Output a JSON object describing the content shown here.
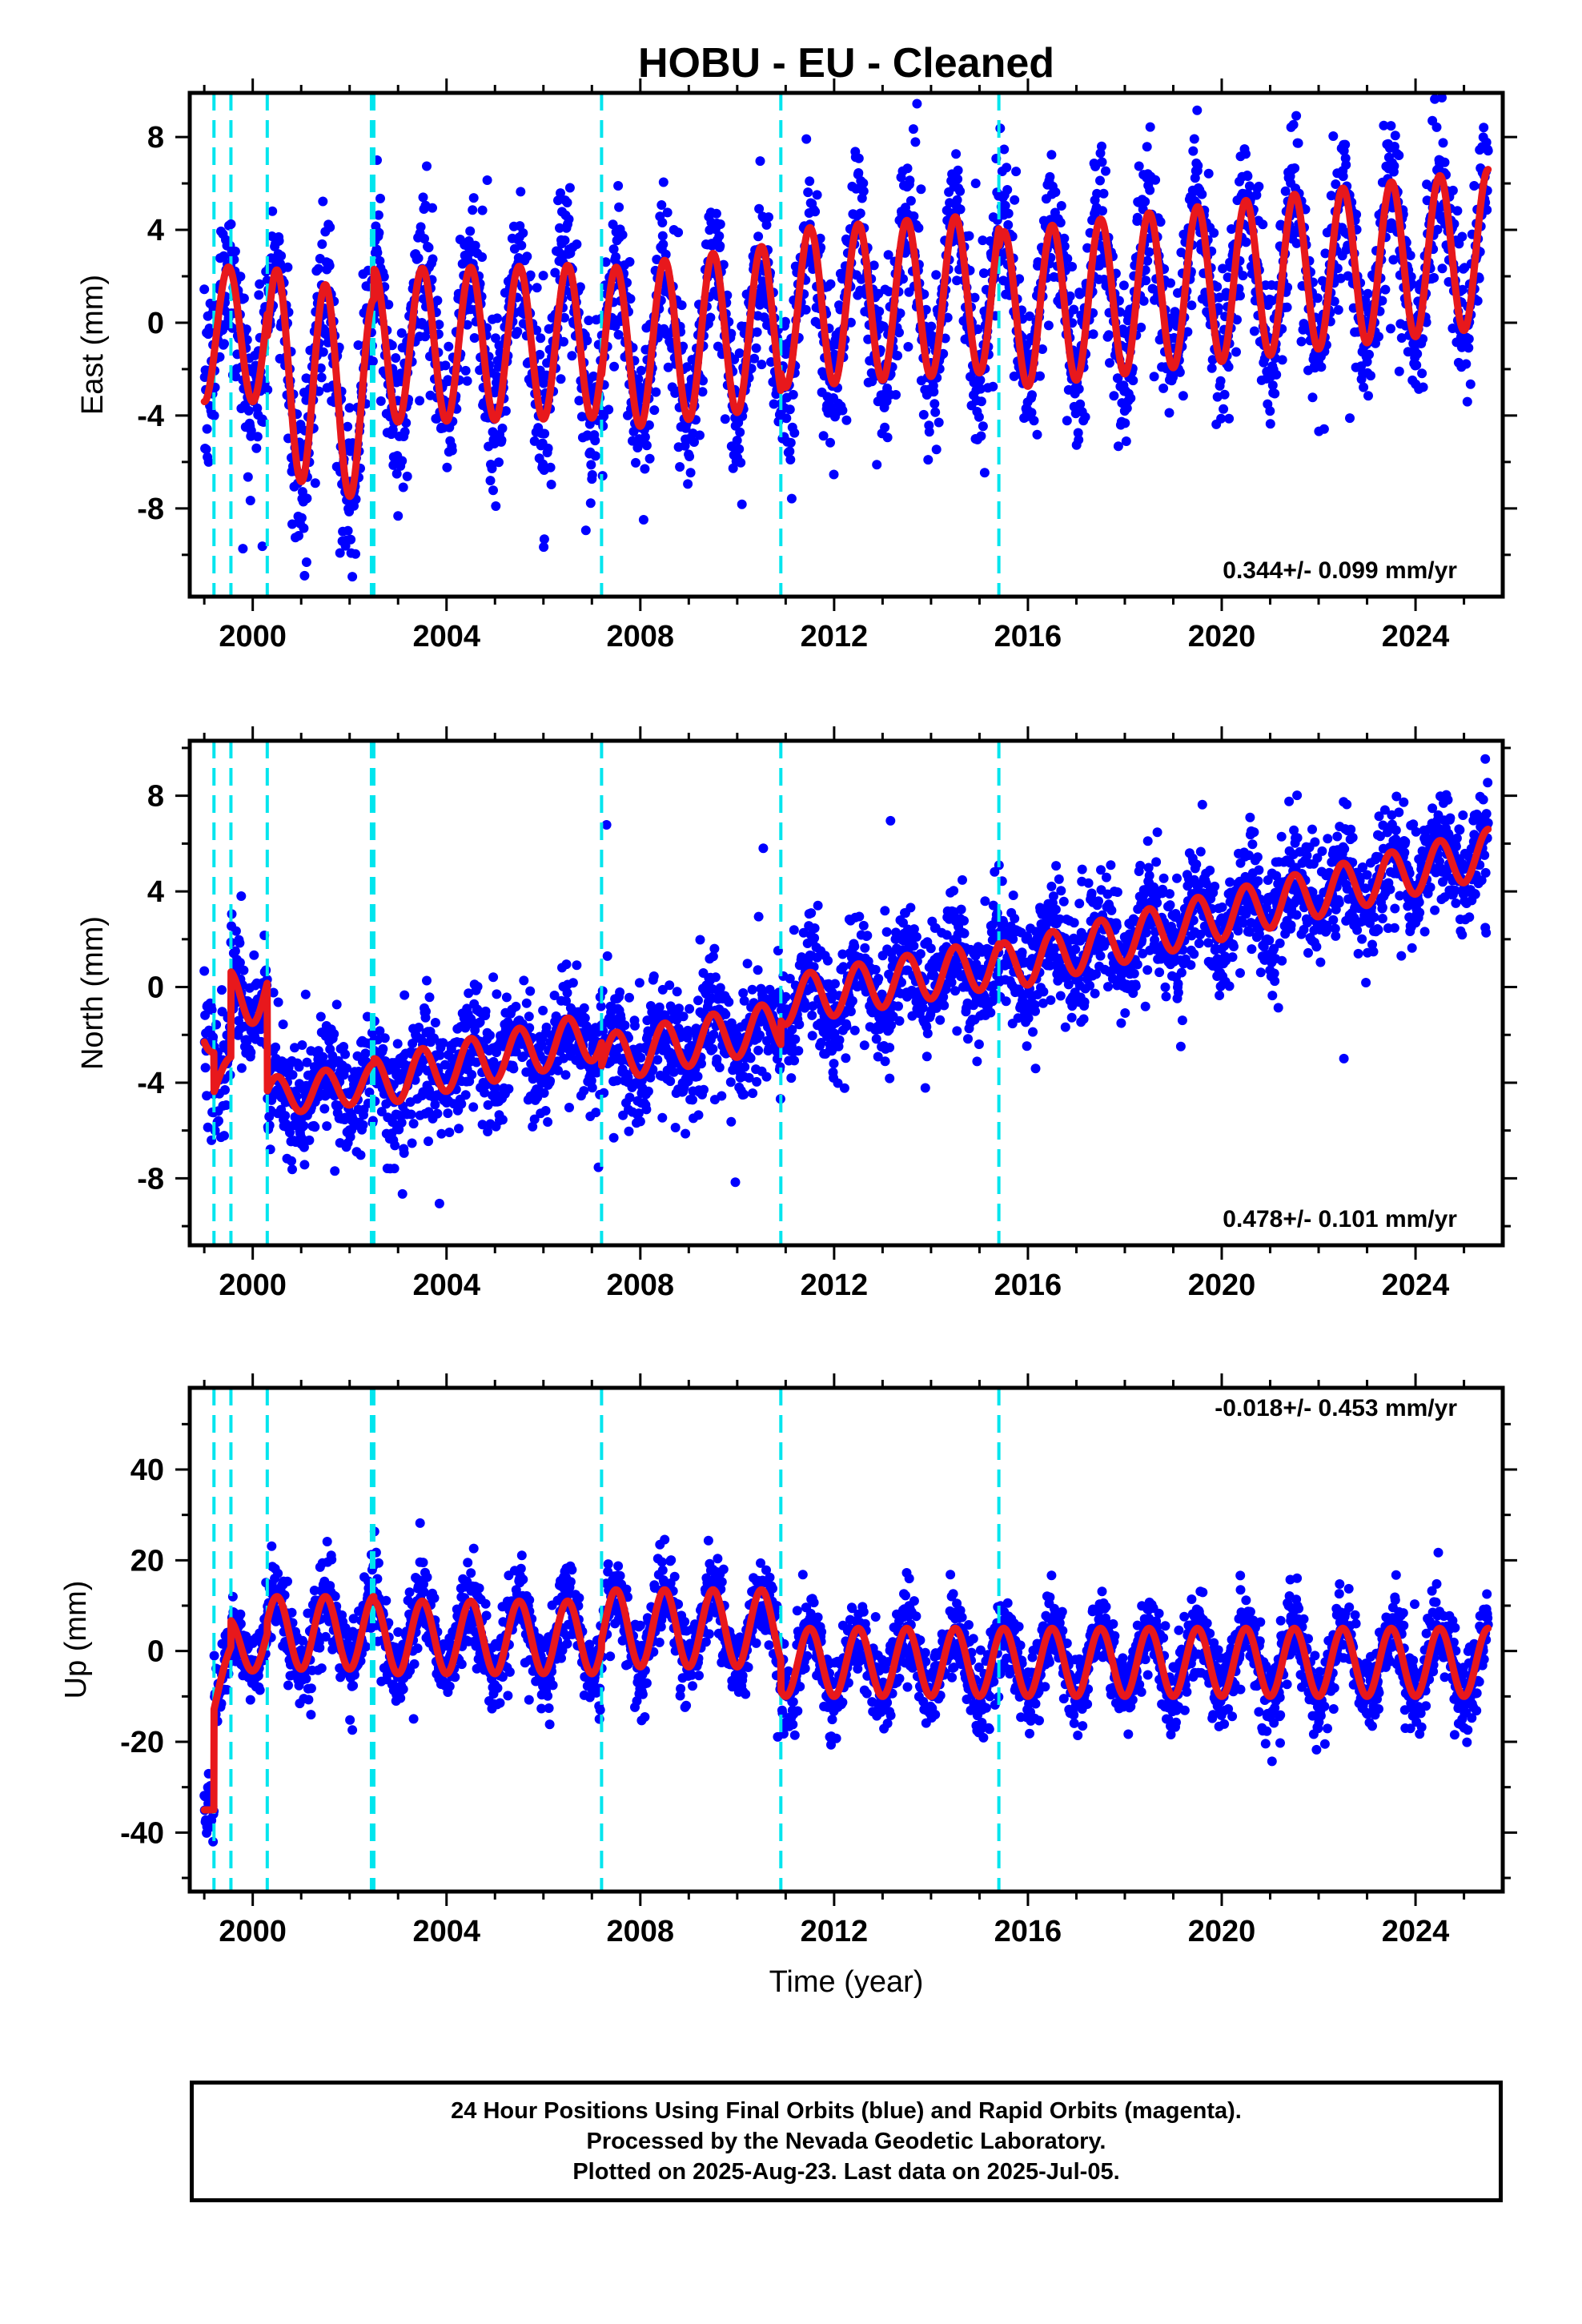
{
  "title": "HOBU  - EU - Cleaned",
  "xlabel": "Time (year)",
  "caption": [
    "24 Hour Positions Using Final Orbits (blue) and Rapid Orbits (magenta).",
    "Processed by the Nevada Geodetic Laboratory.",
    "Plotted on 2025-Aug-23. Last data on 2025-Jul-05."
  ],
  "colors": {
    "final_orbits": "#0000ff",
    "model_fit": "#e8181c",
    "equipment_change": "#00e5ee",
    "frame": "#000000"
  },
  "chart_data": [
    {
      "type": "scatter",
      "ylabel": "East (mm)",
      "xlim": [
        1998.7,
        2025.8
      ],
      "ylim": [
        -11.8,
        9.9
      ],
      "xticks": [
        2000,
        2004,
        2008,
        2012,
        2016,
        2020,
        2024
      ],
      "yticks": [
        -8,
        -4,
        0,
        4,
        8
      ],
      "rate_label": "0.344+/- 0.099 mm/yr",
      "offsets": [
        1999.2,
        1999.55,
        2000.3,
        2002.45,
        2002.5,
        2007.2,
        2010.9,
        2015.4
      ],
      "fit_segments": [
        {
          "start": 1999.0,
          "end": 2000.3,
          "trend": [
            -0.5,
            -0.5
          ],
          "amp": 2.9
        },
        {
          "start": 2000.3,
          "end": 2002.5,
          "trend": [
            -2.0,
            -3.4
          ],
          "amp": 4.4
        },
        {
          "start": 2002.5,
          "end": 2007.2,
          "trend": [
            -1.0,
            -0.8
          ],
          "amp": 3.3
        },
        {
          "start": 2007.2,
          "end": 2010.9,
          "trend": [
            -1.2,
            -0.1
          ],
          "amp": 3.5
        },
        {
          "start": 2010.9,
          "end": 2015.4,
          "trend": [
            0.6,
            1.3
          ],
          "amp": 3.4
        },
        {
          "start": 2015.4,
          "end": 2025.5,
          "trend": [
            0.5,
            3.2
          ],
          "amp": 3.4
        }
      ],
      "noise_sd": 1.7
    },
    {
      "type": "scatter",
      "ylabel": "North (mm)",
      "xlim": [
        1998.7,
        2025.8
      ],
      "ylim": [
        -10.8,
        10.3
      ],
      "xticks": [
        2000,
        2004,
        2008,
        2012,
        2016,
        2020,
        2024
      ],
      "yticks": [
        -8,
        -4,
        0,
        4,
        8
      ],
      "rate_label": "0.478+/- 0.101 mm/yr",
      "offsets": [
        1999.2,
        1999.55,
        2000.3,
        2002.45,
        2002.5,
        2007.2,
        2010.9,
        2015.4
      ],
      "fit_segments": [
        {
          "start": 1999.0,
          "end": 1999.2,
          "trend": [
            -1.5,
            -2.5
          ],
          "amp": 0.8
        },
        {
          "start": 1999.2,
          "end": 1999.55,
          "trend": [
            -4.2,
            -3.5
          ],
          "amp": 0.6
        },
        {
          "start": 1999.55,
          "end": 2000.3,
          "trend": [
            -0.5,
            -0.2
          ],
          "amp": 1.2
        },
        {
          "start": 2000.3,
          "end": 2002.5,
          "trend": [
            -4.6,
            -4.0
          ],
          "amp": 0.8
        },
        {
          "start": 2002.5,
          "end": 2007.2,
          "trend": [
            -4.0,
            -2.0
          ],
          "amp": 1.0
        },
        {
          "start": 2007.2,
          "end": 2010.9,
          "trend": [
            -3.0,
            -1.6
          ],
          "amp": 1.0
        },
        {
          "start": 2010.9,
          "end": 2015.4,
          "trend": [
            -0.6,
            1.0
          ],
          "amp": 1.0
        },
        {
          "start": 2015.4,
          "end": 2025.5,
          "trend": [
            0.8,
            5.6
          ],
          "amp": 1.0
        }
      ],
      "noise_sd": 1.2
    },
    {
      "type": "scatter",
      "ylabel": "Up (mm)",
      "xlim": [
        1998.7,
        2025.8
      ],
      "ylim": [
        -53,
        58
      ],
      "xticks": [
        2000,
        2004,
        2008,
        2012,
        2016,
        2020,
        2024
      ],
      "yticks": [
        -40,
        -20,
        0,
        20,
        40
      ],
      "rate_label": "-0.018+/- 0.453 mm/yr",
      "offsets": [
        1999.2,
        1999.55,
        2000.3,
        2002.45,
        2002.5,
        2007.2,
        2010.9,
        2015.4
      ],
      "fit_segments": [
        {
          "start": 1999.0,
          "end": 1999.2,
          "trend": [
            -35,
            -35
          ],
          "amp": 0
        },
        {
          "start": 1999.2,
          "end": 1999.55,
          "trend": [
            -12,
            -2
          ],
          "amp": 3
        },
        {
          "start": 1999.55,
          "end": 2000.3,
          "trend": [
            1,
            2
          ],
          "amp": 6
        },
        {
          "start": 2000.3,
          "end": 2002.5,
          "trend": [
            4,
            4
          ],
          "amp": 8
        },
        {
          "start": 2002.5,
          "end": 2007.2,
          "trend": [
            3,
            3
          ],
          "amp": 8
        },
        {
          "start": 2007.2,
          "end": 2010.9,
          "trend": [
            5,
            5
          ],
          "amp": 8.5
        },
        {
          "start": 2010.9,
          "end": 2015.4,
          "trend": [
            -2.5,
            -2.5
          ],
          "amp": 7.5
        },
        {
          "start": 2015.4,
          "end": 2025.5,
          "trend": [
            -2.5,
            -2.5
          ],
          "amp": 7.5
        }
      ],
      "noise_sd": 4.5
    }
  ]
}
